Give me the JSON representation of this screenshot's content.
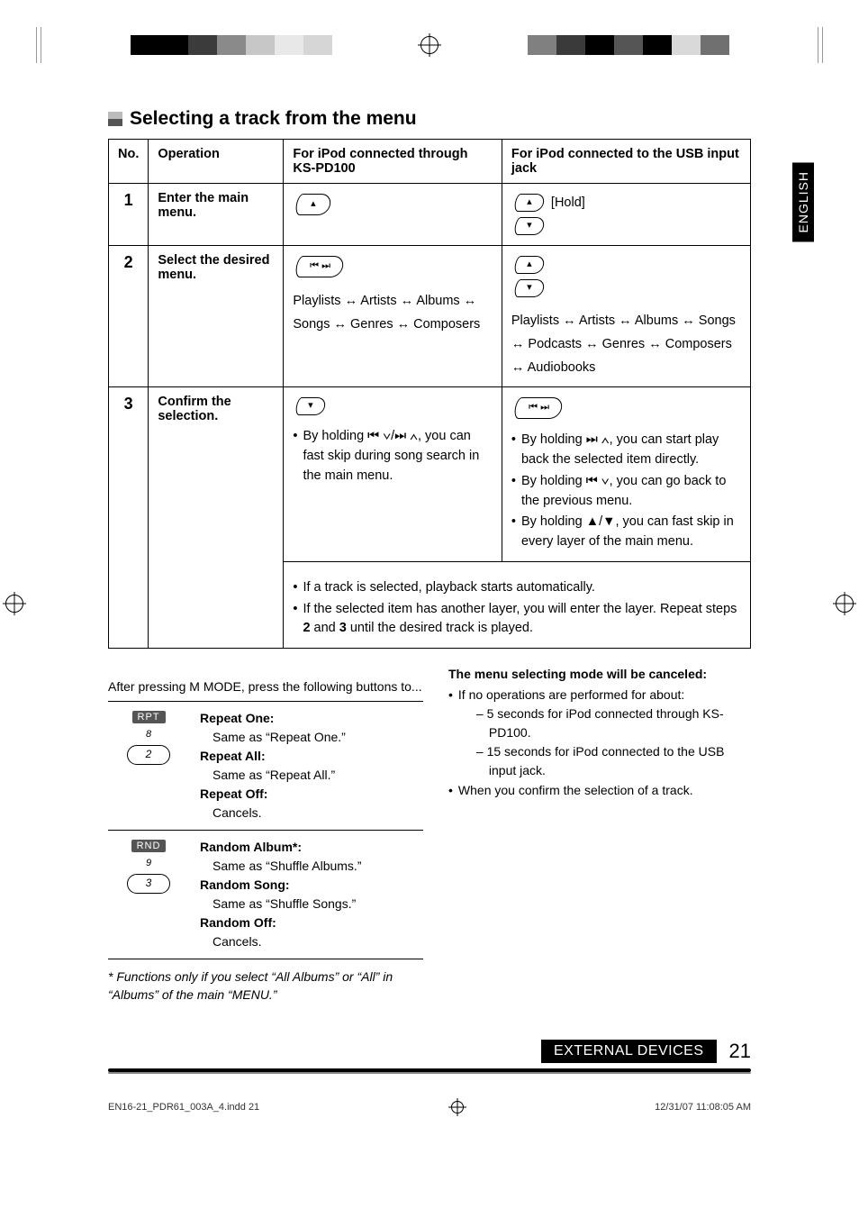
{
  "colorbar_left": [
    "#000000",
    "#000000",
    "#3b3b3b",
    "#8a8a8a",
    "#c7c7c7",
    "#e8e8e8",
    "#d6d6d6"
  ],
  "colorbar_right": [
    "#808080",
    "#3a3a3a",
    "#000000",
    "#555555",
    "#000000",
    "#d9d9d9",
    "#707070"
  ],
  "language_tab": "ENGLISH",
  "section_title": "Selecting a track from the menu",
  "table": {
    "headers": {
      "no": "No.",
      "op": "Operation",
      "pd100": "For iPod connected through KS-PD100",
      "usb": "For iPod connected to the USB input jack"
    },
    "row1": {
      "no": "1",
      "op": "Enter the main menu.",
      "usb_hold": "[Hold]"
    },
    "row2": {
      "no": "2",
      "op": "Select the desired menu.",
      "pd100_chain": "Playlists ↔ Artists ↔ Albums ↔ Songs ↔ Genres ↔ Composers",
      "usb_chain": "Playlists ↔ Artists ↔ Albums ↔ Songs ↔ Podcasts ↔ Genres ↔ Composers ↔ Audiobooks"
    },
    "row3": {
      "no": "3",
      "op": "Confirm the selection.",
      "pd100_note": "By holding ⏮ ∨/⏭ ∧, you can fast skip during song search in the main menu.",
      "usb_note1": "By holding ⏭ ∧, you can start play back the selected item directly.",
      "usb_note2": "By holding ⏮ ∨, you can go back to the previous menu.",
      "usb_note3": "By holding ▲/▼, you can fast skip in every layer of  the main menu.",
      "shared_note1": "If a track is selected, playback starts automatically.",
      "shared_note2": "If the selected item has another layer, you will enter the layer. Repeat steps 2 and 3 until the desired track is played."
    }
  },
  "mode_intro": "After pressing M MODE, press the following buttons to...",
  "mode_rows": [
    {
      "badge": "RPT",
      "num": "8",
      "btn": "2",
      "items": [
        {
          "t": "Repeat One:",
          "d": "Same as “Repeat One.”"
        },
        {
          "t": "Repeat All:",
          "d": "Same as “Repeat All.”"
        },
        {
          "t": "Repeat Off:",
          "d": "Cancels."
        }
      ]
    },
    {
      "badge": "RND",
      "num": "9",
      "btn": "3",
      "items": [
        {
          "t": "Random Album*:",
          "d": "Same as “Shuffle Albums.”"
        },
        {
          "t": "Random Song:",
          "d": "Same as “Shuffle Songs.”"
        },
        {
          "t": "Random Off:",
          "d": "Cancels."
        }
      ]
    }
  ],
  "footnote": "* Functions only if you select “All Albums” or “All” in “Albums” of the main “MENU.”",
  "cancel_block": {
    "title": "The menu selecting mode will be canceled:",
    "bullet1": "If no operations are performed for about:",
    "sub1": "– 5 seconds for iPod connected through KS-PD100.",
    "sub2": "– 15 seconds for iPod connected to the USB input jack.",
    "bullet2": "When you confirm the selection of a track."
  },
  "footer": {
    "label": "EXTERNAL DEVICES",
    "page": "21"
  },
  "imprint": {
    "file": "EN16-21_PDR61_003A_4.indd   21",
    "ts": "12/31/07   11:08:05 AM"
  }
}
